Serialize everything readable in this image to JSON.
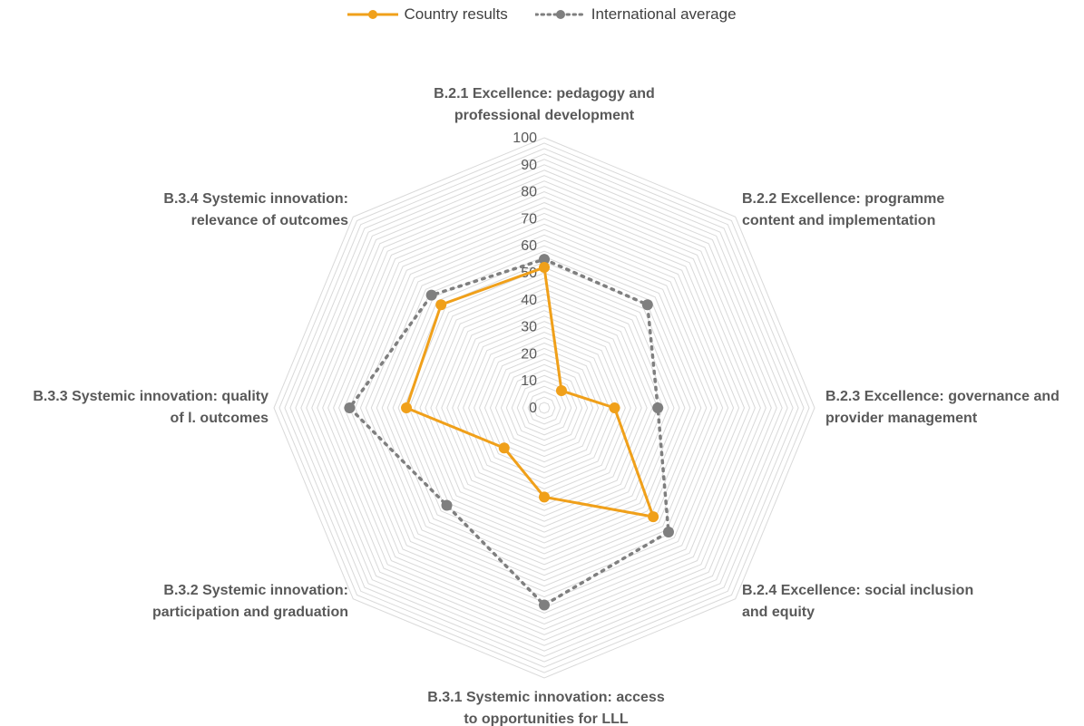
{
  "legend": {
    "country_label": "Country results",
    "international_label": "International average"
  },
  "colors": {
    "country": "#F0A01A",
    "international": "#7F7F7F",
    "grid": "#D9D9D9"
  },
  "chart_data": {
    "type": "radar",
    "title": "",
    "axes": [
      [
        "B.2.1 Excellence: pedagogy and",
        "professional development"
      ],
      [
        "B.2.2 Excellence: programme",
        "content and implementation"
      ],
      [
        "B.2.3 Excellence: governance and",
        "provider management"
      ],
      [
        "B.2.4 Excellence: social inclusion",
        "and equity"
      ],
      [
        "B.3.1 Systemic innovation: access",
        "to opportunities for LLL"
      ],
      [
        "B.3.2 Systemic innovation:",
        "participation and graduation"
      ],
      [
        "B.3.3 Systemic innovation: quality",
        "of l. outcomes"
      ],
      [
        "B.3.4 Systemic innovation:",
        "relevance of outcomes"
      ]
    ],
    "rmin": 0,
    "rmax": 100,
    "ticks": [
      0,
      10,
      20,
      30,
      40,
      50,
      60,
      70,
      80,
      90,
      100
    ],
    "grid_minor_step": 2,
    "series": [
      {
        "name": "Country results",
        "values": [
          52,
          9,
          26,
          57,
          33,
          21,
          51,
          54
        ]
      },
      {
        "name": "International average",
        "values": [
          55,
          54,
          42,
          65,
          73,
          51,
          72,
          59
        ]
      }
    ]
  }
}
